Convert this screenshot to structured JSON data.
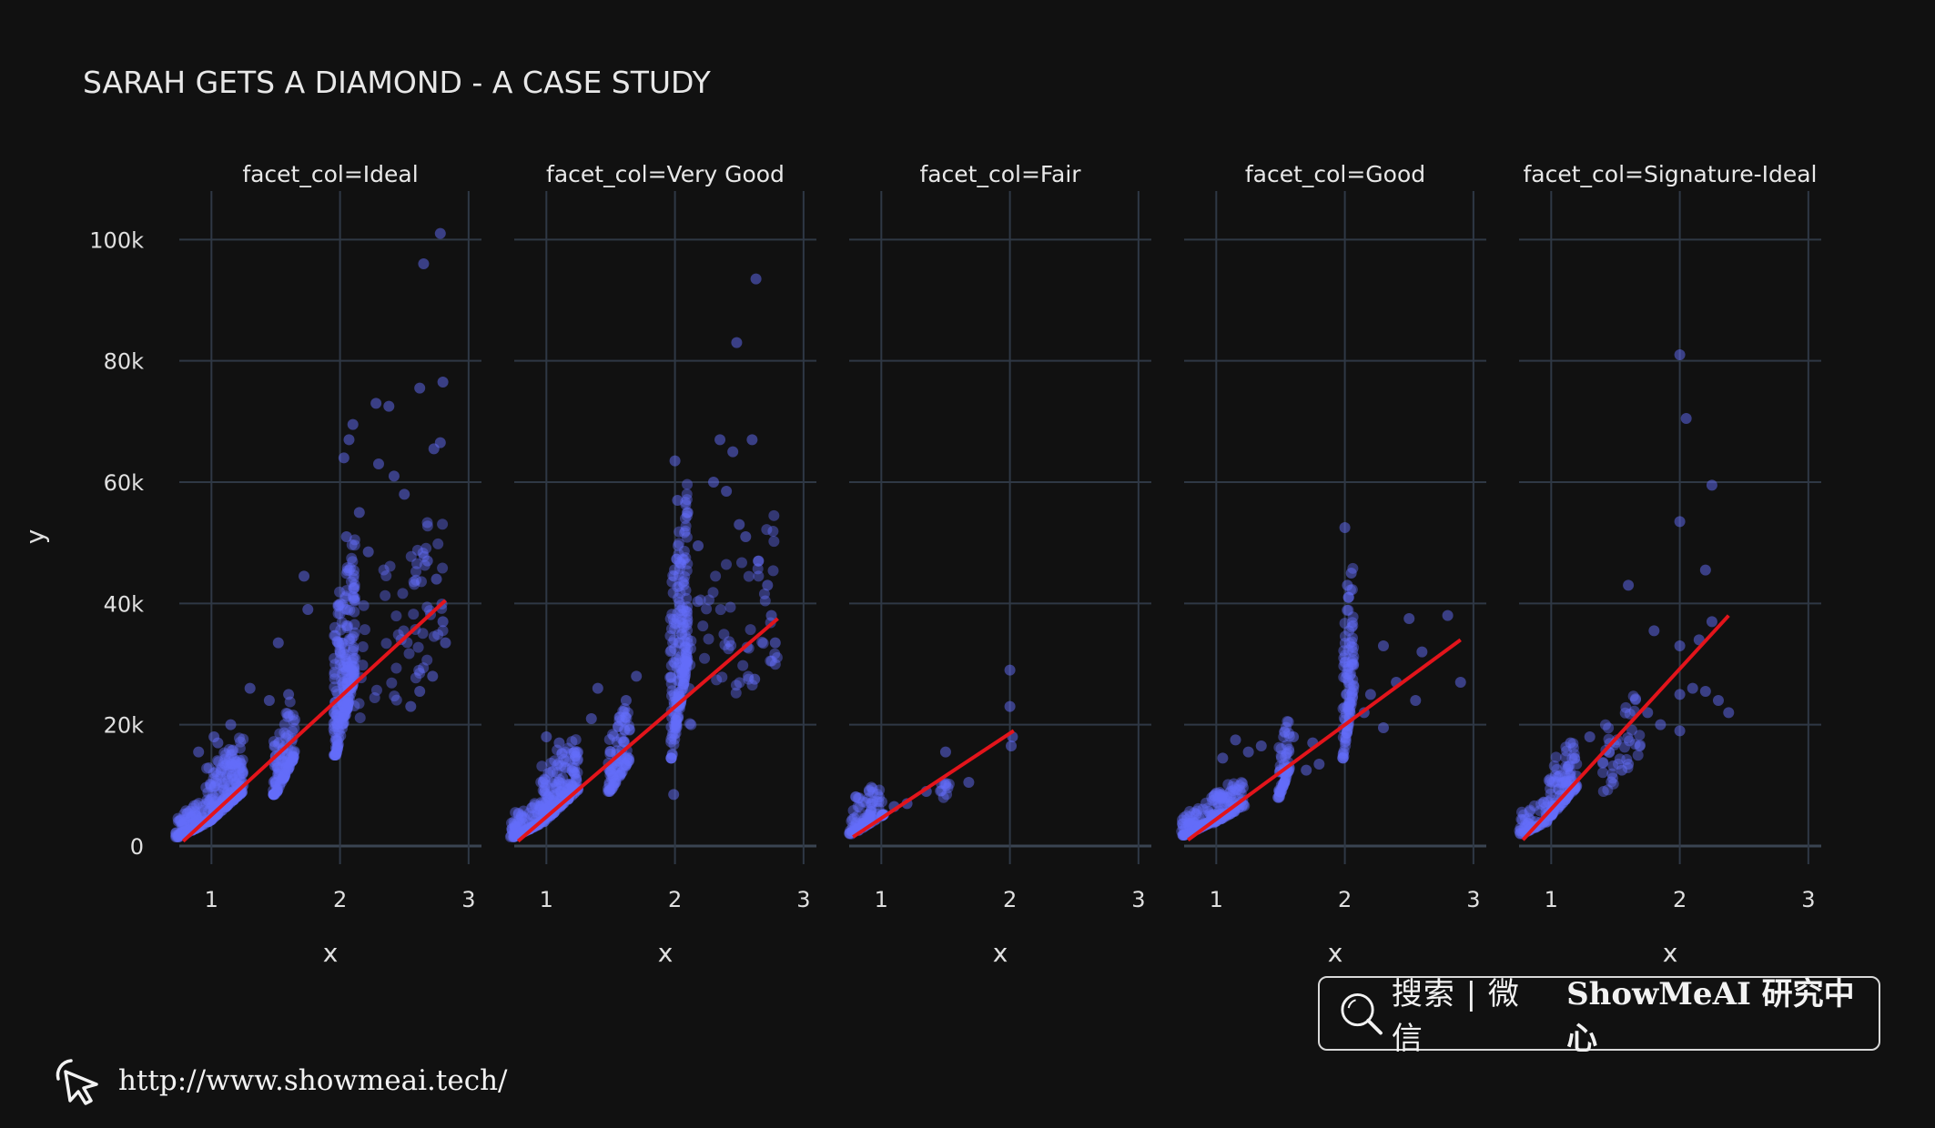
{
  "chart_data": {
    "type": "scatter",
    "title": "SARAH GETS A DIAMOND - A CASE STUDY",
    "xlabel": "x",
    "ylabel": "y",
    "xlim": [
      0.75,
      3.1
    ],
    "ylim": [
      -3000,
      108000
    ],
    "xticks": [
      1,
      2,
      3
    ],
    "yticks": [
      0,
      20000,
      40000,
      60000,
      80000,
      100000
    ],
    "ytick_labels": [
      "0",
      "20k",
      "40k",
      "60k",
      "80k",
      "100k"
    ],
    "marker_color": "#636efa",
    "trend_color": "#e3141b",
    "facets": [
      {
        "title": "facet_col=Ideal",
        "trend": [
          [
            0.78,
            800
          ],
          [
            2.82,
            40500
          ]
        ],
        "clusters": [
          {
            "x": [
              0.72,
              0.95
            ],
            "y": [
              1500,
              5500
            ],
            "n": 120,
            "s": 3.5
          },
          {
            "x": [
              0.95,
              1.25
            ],
            "y": [
              4000,
              13500
            ],
            "n": 220,
            "s": 2.5
          },
          {
            "x": [
              1.48,
              1.65
            ],
            "y": [
              8500,
              20500
            ],
            "n": 110,
            "s": 2.8
          },
          {
            "x": [
              1.95,
              2.12
            ],
            "y": [
              15000,
              40000
            ],
            "n": 220,
            "s": 2.2
          },
          {
            "x": [
              2.1,
              2.8
            ],
            "y": [
              18000,
              45000
            ],
            "n": 60,
            "s": 1.2
          }
        ],
        "points": [
          [
            2.78,
            101000
          ],
          [
            2.65,
            96000
          ],
          [
            2.8,
            76500
          ],
          [
            2.62,
            75500
          ],
          [
            2.38,
            72500
          ],
          [
            2.28,
            73000
          ],
          [
            2.1,
            69500
          ],
          [
            2.07,
            67000
          ],
          [
            2.03,
            64000
          ],
          [
            2.78,
            66500
          ],
          [
            2.73,
            65500
          ],
          [
            2.3,
            63000
          ],
          [
            2.42,
            61000
          ],
          [
            2.5,
            58000
          ],
          [
            2.15,
            55000
          ],
          [
            2.05,
            51000
          ],
          [
            2.22,
            48500
          ],
          [
            2.68,
            47000
          ],
          [
            2.75,
            44000
          ],
          [
            2.8,
            37000
          ],
          [
            2.82,
            33500
          ],
          [
            2.72,
            28000
          ],
          [
            2.62,
            25500
          ],
          [
            2.55,
            23000
          ],
          [
            1.72,
            44500
          ],
          [
            1.75,
            39000
          ],
          [
            1.52,
            33500
          ],
          [
            1.3,
            26000
          ],
          [
            1.02,
            18000
          ],
          [
            1.05,
            17000
          ],
          [
            1.15,
            20000
          ],
          [
            1.6,
            25000
          ],
          [
            1.45,
            24000
          ],
          [
            0.9,
            15500
          ]
        ]
      },
      {
        "title": "facet_col=Very Good",
        "trend": [
          [
            0.78,
            800
          ],
          [
            2.8,
            37500
          ]
        ],
        "clusters": [
          {
            "x": [
              0.72,
              0.95
            ],
            "y": [
              1500,
              5500
            ],
            "n": 110,
            "s": 3.5
          },
          {
            "x": [
              0.95,
              1.25
            ],
            "y": [
              4000,
              14000
            ],
            "n": 180,
            "s": 2.5
          },
          {
            "x": [
              1.48,
              1.65
            ],
            "y": [
              9000,
              19000
            ],
            "n": 90,
            "s": 2.8
          },
          {
            "x": [
              1.96,
              2.1
            ],
            "y": [
              14500,
              45000
            ],
            "n": 200,
            "s": 2.2
          },
          {
            "x": [
              2.1,
              2.8
            ],
            "y": [
              16000,
              43000
            ],
            "n": 55,
            "s": 1.2
          }
        ],
        "points": [
          [
            2.63,
            93500
          ],
          [
            2.48,
            83000
          ],
          [
            2.35,
            67000
          ],
          [
            2.6,
            67000
          ],
          [
            2.45,
            65000
          ],
          [
            2.0,
            63500
          ],
          [
            2.3,
            60000
          ],
          [
            2.4,
            58500
          ],
          [
            2.02,
            57000
          ],
          [
            2.1,
            55000
          ],
          [
            2.5,
            53000
          ],
          [
            2.55,
            51000
          ],
          [
            2.18,
            49500
          ],
          [
            2.65,
            47000
          ],
          [
            2.72,
            43000
          ],
          [
            2.75,
            38000
          ],
          [
            2.78,
            33500
          ],
          [
            2.62,
            27500
          ],
          [
            1.99,
            8500
          ],
          [
            1.7,
            28000
          ],
          [
            1.62,
            24000
          ],
          [
            1.35,
            21000
          ],
          [
            1.0,
            18000
          ],
          [
            1.1,
            17000
          ],
          [
            1.4,
            26000
          ]
        ]
      },
      {
        "title": "facet_col=Fair",
        "trend": [
          [
            0.78,
            1500
          ],
          [
            2.03,
            19000
          ]
        ],
        "clusters": [
          {
            "x": [
              0.75,
              1.02
            ],
            "y": [
              2000,
              8000
            ],
            "n": 90,
            "s": 3
          },
          {
            "x": [
              1.45,
              1.55
            ],
            "y": [
              7500,
              11000
            ],
            "n": 10,
            "s": 2
          }
        ],
        "points": [
          [
            2.0,
            29000
          ],
          [
            2.0,
            23000
          ],
          [
            2.02,
            18000
          ],
          [
            2.01,
            16500
          ],
          [
            1.5,
            15500
          ],
          [
            1.68,
            10500
          ],
          [
            1.35,
            9000
          ],
          [
            1.2,
            7000
          ],
          [
            1.1,
            6500
          ]
        ]
      },
      {
        "title": "facet_col=Good",
        "trend": [
          [
            0.78,
            1000
          ],
          [
            2.9,
            34000
          ]
        ],
        "clusters": [
          {
            "x": [
              0.73,
              0.95
            ],
            "y": [
              1800,
              5500
            ],
            "n": 90,
            "s": 3.5
          },
          {
            "x": [
              0.95,
              1.22
            ],
            "y": [
              3800,
              9000
            ],
            "n": 110,
            "s": 2.5
          },
          {
            "x": [
              1.48,
              1.57
            ],
            "y": [
              8000,
              17000
            ],
            "n": 60,
            "s": 2.5
          },
          {
            "x": [
              1.98,
              2.07
            ],
            "y": [
              14500,
              36000
            ],
            "n": 100,
            "s": 2.5
          }
        ],
        "points": [
          [
            2.0,
            52500
          ],
          [
            2.05,
            45000
          ],
          [
            2.02,
            43000
          ],
          [
            2.03,
            41000
          ],
          [
            2.8,
            38000
          ],
          [
            2.5,
            37500
          ],
          [
            2.3,
            33000
          ],
          [
            2.6,
            32000
          ],
          [
            2.4,
            27000
          ],
          [
            2.9,
            27000
          ],
          [
            2.2,
            25000
          ],
          [
            2.55,
            24000
          ],
          [
            2.15,
            22000
          ],
          [
            2.3,
            19500
          ],
          [
            1.15,
            17500
          ],
          [
            1.25,
            15500
          ],
          [
            1.05,
            14500
          ],
          [
            1.35,
            16500
          ],
          [
            1.6,
            18000
          ],
          [
            1.75,
            17000
          ],
          [
            1.8,
            13500
          ],
          [
            1.7,
            12500
          ]
        ]
      },
      {
        "title": "facet_col=Signature-Ideal",
        "trend": [
          [
            0.78,
            1000
          ],
          [
            2.38,
            38000
          ]
        ],
        "clusters": [
          {
            "x": [
              0.75,
              0.98
            ],
            "y": [
              2000,
              6000
            ],
            "n": 60,
            "s": 3
          },
          {
            "x": [
              0.98,
              1.2
            ],
            "y": [
              5000,
              14000
            ],
            "n": 110,
            "s": 2.5
          },
          {
            "x": [
              1.4,
              1.7
            ],
            "y": [
              9000,
              21000
            ],
            "n": 40,
            "s": 1.8
          }
        ],
        "points": [
          [
            2.0,
            81000
          ],
          [
            2.05,
            70500
          ],
          [
            2.25,
            59500
          ],
          [
            2.0,
            53500
          ],
          [
            2.2,
            45500
          ],
          [
            1.6,
            43000
          ],
          [
            2.25,
            37000
          ],
          [
            2.15,
            34000
          ],
          [
            2.0,
            33000
          ],
          [
            2.0,
            25000
          ],
          [
            2.1,
            26000
          ],
          [
            2.2,
            25500
          ],
          [
            2.3,
            24000
          ],
          [
            2.38,
            22000
          ],
          [
            2.0,
            19000
          ],
          [
            1.8,
            35500
          ],
          [
            1.75,
            22000
          ],
          [
            1.85,
            20000
          ],
          [
            1.6,
            13500
          ],
          [
            1.55,
            12500
          ],
          [
            1.3,
            18000
          ],
          [
            1.15,
            17000
          ]
        ]
      }
    ]
  },
  "footer": {
    "search_text": "搜索 | 微信",
    "brand_text": "ShowMeAI 研究中心",
    "url": "http://www.showmeai.tech/"
  }
}
